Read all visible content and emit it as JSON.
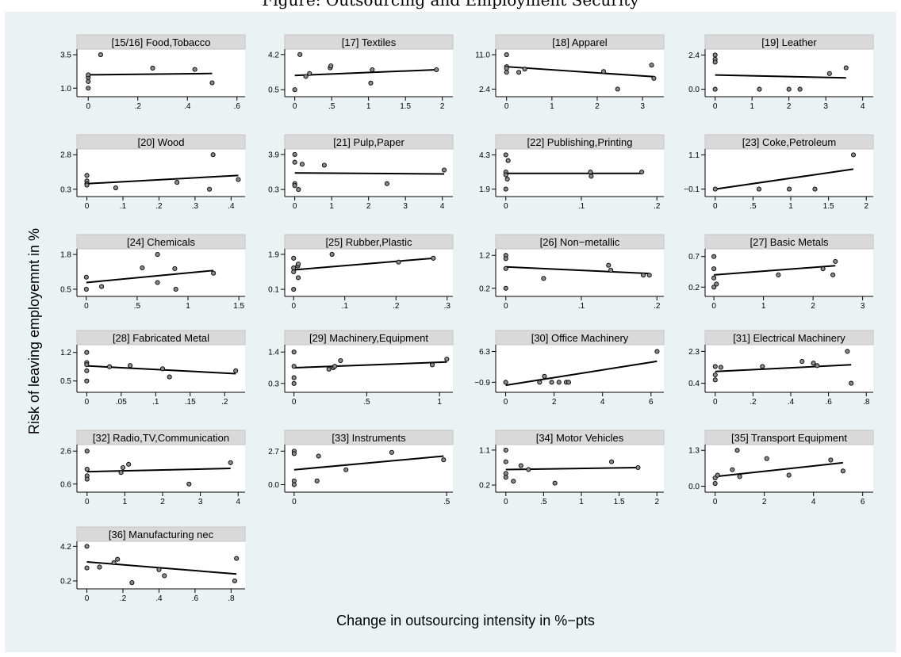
{
  "caption": "Figure: Outsourcing and Employment Security",
  "chart_data": {
    "type": "scatter",
    "xlabel": "Change in outsourcing intensity in %−pts",
    "ylabel": "Risk of leaving employemnt in %",
    "fit": "linear",
    "panels": [
      {
        "title": "[15/16] Food,Tobacco",
        "xlim": [
          -0.02,
          0.62
        ],
        "xticks": [
          0,
          0.2,
          0.4,
          0.6
        ],
        "xticklabels": [
          "0",
          ".2",
          ".4",
          ".6"
        ],
        "ylim": [
          0.6,
          3.8
        ],
        "yticks": [
          1.0,
          3.5
        ],
        "yticklabels": [
          "1.0",
          "3.5"
        ],
        "x": [
          0,
          0,
          0,
          0,
          0.05,
          0.26,
          0.43,
          0.5
        ],
        "y": [
          1.0,
          1.5,
          1.8,
          2.0,
          3.5,
          2.5,
          2.4,
          1.4
        ],
        "fit_line": [
          2.0,
          2.1
        ]
      },
      {
        "title": "[17] Textiles",
        "xlim": [
          -0.05,
          2.1
        ],
        "xticks": [
          0,
          0.5,
          1,
          1.5,
          2
        ],
        "xticklabels": [
          "0",
          ".5",
          "1",
          "1.5",
          "2"
        ],
        "ylim": [
          0.1,
          4.6
        ],
        "yticks": [
          0.5,
          4.2
        ],
        "yticklabels": [
          "0.5",
          "4.2"
        ],
        "x": [
          0,
          0.07,
          0.15,
          0.2,
          0.48,
          0.49,
          1.03,
          1.05,
          1.92
        ],
        "y": [
          0.5,
          4.2,
          1.9,
          2.2,
          2.8,
          3.0,
          1.2,
          2.6,
          2.6
        ],
        "fit_line": [
          2.0,
          2.6
        ]
      },
      {
        "title": "[18] Apparel",
        "xlim": [
          -0.1,
          3.4
        ],
        "xticks": [
          0,
          1,
          2,
          3
        ],
        "xticklabels": [
          "0",
          "1",
          "2",
          "3"
        ],
        "ylim": [
          1.3,
          12.0
        ],
        "yticks": [
          2.4,
          11.0
        ],
        "yticklabels": [
          "2.4",
          "11.0"
        ],
        "x": [
          0,
          0,
          0,
          0,
          0.27,
          0.4,
          2.14,
          2.45,
          3.2,
          3.25
        ],
        "y": [
          11.0,
          8.0,
          7.6,
          6.6,
          6.6,
          7.4,
          6.8,
          2.4,
          8.4,
          5.1
        ],
        "fit_line": [
          8.0,
          5.5
        ]
      },
      {
        "title": "[19] Leather",
        "xlim": [
          -0.1,
          4.2
        ],
        "xticks": [
          0,
          1,
          2,
          3,
          4
        ],
        "xticklabels": [
          "0",
          "1",
          "2",
          "3",
          "4"
        ],
        "ylim": [
          -0.3,
          2.7
        ],
        "yticks": [
          0.0,
          2.4
        ],
        "yticklabels": [
          "0.0",
          "2.4"
        ],
        "x": [
          0,
          0,
          0,
          0,
          1.2,
          2.0,
          2.3,
          3.1,
          3.55
        ],
        "y": [
          2.4,
          2.1,
          1.9,
          0,
          0,
          0,
          0,
          1.1,
          1.5
        ],
        "fit_line": [
          1.0,
          0.8
        ]
      },
      {
        "title": "[20] Wood",
        "xlim": [
          -0.01,
          0.43
        ],
        "xticks": [
          0,
          0.1,
          0.2,
          0.3,
          0.4
        ],
        "xticklabels": [
          "0",
          ".1",
          ".2",
          ".3",
          ".4"
        ],
        "ylim": [
          0.0,
          3.1
        ],
        "yticks": [
          0.3,
          2.8
        ],
        "yticklabels": [
          "0.3",
          "2.8"
        ],
        "x": [
          0,
          0,
          0,
          0,
          0.08,
          0.25,
          0.34,
          0.35,
          0.42
        ],
        "y": [
          1.3,
          0.9,
          0.7,
          0.6,
          0.4,
          0.8,
          0.3,
          2.8,
          1.0
        ],
        "fit_line": [
          0.7,
          1.3
        ]
      },
      {
        "title": "[21] Pulp,Paper",
        "xlim": [
          -0.1,
          4.2
        ],
        "xticks": [
          0,
          1,
          2,
          3,
          4
        ],
        "xticklabels": [
          "0",
          "1",
          "2",
          "3",
          "4"
        ],
        "ylim": [
          -0.1,
          4.3
        ],
        "yticks": [
          0.3,
          3.9
        ],
        "yticklabels": [
          "0.3",
          "3.9"
        ],
        "x": [
          0,
          0,
          0,
          0,
          0.1,
          0.2,
          0.8,
          2.5,
          4.05
        ],
        "y": [
          3.9,
          3.1,
          0.9,
          0.7,
          0.3,
          2.9,
          2.8,
          0.9,
          2.3
        ],
        "fit_line": [
          2.0,
          1.9
        ]
      },
      {
        "title": "[22] Publishing,Printing",
        "xlim": [
          -0.005,
          0.205
        ],
        "xticks": [
          0,
          0.1,
          0.2
        ],
        "xticklabels": [
          "0",
          ".1",
          ".2"
        ],
        "ylim": [
          1.6,
          4.6
        ],
        "yticks": [
          1.9,
          4.3
        ],
        "yticklabels": [
          "1.9",
          "4.3"
        ],
        "x": [
          0,
          0,
          0,
          0,
          0.002,
          0.003,
          0.112,
          0.113,
          0.18
        ],
        "y": [
          4.3,
          3.1,
          2.9,
          1.9,
          2.6,
          3.9,
          3.1,
          2.8,
          3.1
        ],
        "fit_line": [
          3.0,
          3.0
        ]
      },
      {
        "title": "[23] Coke,Petroleum",
        "xlim": [
          -0.05,
          2.05
        ],
        "xticks": [
          0,
          0.5,
          1,
          1.5,
          2
        ],
        "xticklabels": [
          "0",
          ".5",
          "1",
          "1.5",
          "2"
        ],
        "ylim": [
          -0.25,
          1.25
        ],
        "yticks": [
          -0.1,
          1.1
        ],
        "yticklabels": [
          "−0.1",
          "1.1"
        ],
        "x": [
          0,
          0.58,
          0.98,
          1.32,
          1.83
        ],
        "y": [
          -0.1,
          -0.1,
          -0.1,
          -0.1,
          1.1
        ],
        "fit_line": [
          -0.1,
          0.6
        ]
      },
      {
        "title": "[24] Chemicals",
        "xlim": [
          -0.03,
          1.53
        ],
        "xticks": [
          0,
          0.5,
          1,
          1.5
        ],
        "xticklabels": [
          "0",
          ".5",
          "1",
          "1.5"
        ],
        "ylim": [
          0.35,
          1.95
        ],
        "yticks": [
          0.5,
          1.8
        ],
        "yticklabels": [
          "0.5",
          "1.8"
        ],
        "x": [
          0,
          0,
          0.15,
          0.55,
          0.7,
          0.7,
          0.87,
          0.88,
          1.25
        ],
        "y": [
          0.5,
          0.95,
          0.6,
          1.3,
          0.75,
          1.8,
          1.27,
          0.5,
          1.1
        ],
        "fit_line": [
          0.75,
          1.2
        ]
      },
      {
        "title": "[25] Rubber,Plastic",
        "xlim": [
          -0.005,
          0.305
        ],
        "xticks": [
          0,
          0.1,
          0.2,
          0.3
        ],
        "xticklabels": [
          "0",
          ".1",
          ".2",
          ".3"
        ],
        "ylim": [
          -0.1,
          2.1
        ],
        "yticks": [
          0.1,
          1.9
        ],
        "yticklabels": [
          "0.1",
          "1.9"
        ],
        "x": [
          0,
          0,
          0,
          0,
          0.008,
          0.009,
          0.009,
          0.075,
          0.205,
          0.273
        ],
        "y": [
          1.7,
          1.2,
          1.0,
          0.1,
          1.3,
          1.4,
          0.7,
          1.9,
          1.5,
          1.7
        ],
        "fit_line": [
          1.1,
          1.7
        ]
      },
      {
        "title": "[26] Non−metallic",
        "xlim": [
          -0.005,
          0.205
        ],
        "xticks": [
          0,
          0.1,
          0.2
        ],
        "xticklabels": [
          "0",
          ".1",
          ".2"
        ],
        "ylim": [
          0.05,
          1.35
        ],
        "yticks": [
          0.2,
          1.2
        ],
        "yticklabels": [
          "0.2",
          "1.2"
        ],
        "x": [
          0,
          0,
          0,
          0,
          0.05,
          0.136,
          0.139,
          0.182,
          0.19
        ],
        "y": [
          1.2,
          1.1,
          0.8,
          0.2,
          0.5,
          0.9,
          0.75,
          0.6,
          0.6
        ],
        "fit_line": [
          0.85,
          0.65
        ]
      },
      {
        "title": "[27] Basic Metals",
        "xlim": [
          -0.05,
          3.15
        ],
        "xticks": [
          0,
          1,
          2,
          3
        ],
        "xticklabels": [
          "0",
          "1",
          "2",
          "3"
        ],
        "ylim": [
          0.1,
          0.8
        ],
        "yticks": [
          0.2,
          0.7
        ],
        "yticklabels": [
          "0.2",
          "0.7"
        ],
        "x": [
          0,
          0,
          0,
          0,
          0.05,
          1.3,
          2.2,
          2.4,
          2.45
        ],
        "y": [
          0.7,
          0.5,
          0.35,
          0.2,
          0.25,
          0.4,
          0.5,
          0.4,
          0.62
        ],
        "fit_line": [
          0.4,
          0.55
        ]
      },
      {
        "title": "[28] Fabricated Metal",
        "xlim": [
          -0.005,
          0.225
        ],
        "xticks": [
          0,
          0.05,
          0.1,
          0.15,
          0.2
        ],
        "xticklabels": [
          "0",
          ".05",
          ".1",
          ".15",
          ".2"
        ],
        "ylim": [
          0.3,
          1.35
        ],
        "yticks": [
          0.5,
          1.2
        ],
        "yticklabels": [
          "0.5",
          "1.2"
        ],
        "x": [
          0,
          0,
          0,
          0,
          0,
          0.033,
          0.063,
          0.11,
          0.12,
          0.216
        ],
        "y": [
          1.2,
          0.95,
          0.9,
          0.75,
          0.5,
          0.85,
          0.88,
          0.8,
          0.6,
          0.75
        ],
        "fit_line": [
          0.87,
          0.68
        ]
      },
      {
        "title": "[29] Machinery,Equipment",
        "xlim": [
          -0.02,
          1.07
        ],
        "xticks": [
          0,
          0.5,
          1
        ],
        "xticklabels": [
          "0",
          ".5",
          "1"
        ],
        "ylim": [
          0.1,
          1.6
        ],
        "yticks": [
          0.3,
          1.4
        ],
        "yticklabels": [
          "0.3",
          "1.4"
        ],
        "x": [
          0,
          0,
          0,
          0,
          0.24,
          0.27,
          0.28,
          0.32,
          0.95,
          1.05
        ],
        "y": [
          1.4,
          0.9,
          0.5,
          0.3,
          0.8,
          0.85,
          0.9,
          1.1,
          0.95,
          1.15
        ],
        "fit_line": [
          0.85,
          1.05
        ]
      },
      {
        "title": "[30] Office Machinery",
        "xlim": [
          -0.15,
          6.4
        ],
        "xticks": [
          0,
          2,
          4,
          6
        ],
        "xticklabels": [
          "0",
          "2",
          "4",
          "6"
        ],
        "ylim": [
          -2.5,
          7.5
        ],
        "yticks": [
          -0.9,
          6.3
        ],
        "yticklabels": [
          "−0.9",
          "6.3"
        ],
        "x": [
          0,
          1.4,
          1.6,
          1.9,
          2.2,
          2.5,
          2.6,
          6.25
        ],
        "y": [
          -0.9,
          -0.9,
          0.5,
          -0.9,
          -0.9,
          -0.9,
          -0.9,
          6.3
        ],
        "fit_line": [
          -1.6,
          4.0
        ]
      },
      {
        "title": "[31] Electrical Machinery",
        "xlim": [
          -0.02,
          0.82
        ],
        "xticks": [
          0,
          0.2,
          0.4,
          0.6,
          0.8
        ],
        "xticklabels": [
          "0",
          ".2",
          ".4",
          ".6",
          ".8"
        ],
        "ylim": [
          0.05,
          2.6
        ],
        "yticks": [
          0.4,
          2.3
        ],
        "yticklabels": [
          "0.4",
          "2.3"
        ],
        "x": [
          0,
          0,
          0,
          0.03,
          0.25,
          0.46,
          0.52,
          0.54,
          0.7,
          0.72
        ],
        "y": [
          1.4,
          0.9,
          0.6,
          1.35,
          1.4,
          1.7,
          1.6,
          1.45,
          2.3,
          0.4
        ],
        "fit_line": [
          1.1,
          1.5
        ]
      },
      {
        "title": "[32] Radio,TV,Communication",
        "xlim": [
          -0.1,
          4.1
        ],
        "xticks": [
          0,
          1,
          2,
          3,
          4
        ],
        "xticklabels": [
          "0",
          "1",
          "2",
          "3",
          "4"
        ],
        "ylim": [
          0.3,
          2.9
        ],
        "yticks": [
          0.6,
          2.6
        ],
        "yticklabels": [
          "0.6",
          "2.6"
        ],
        "x": [
          0,
          0,
          0,
          0,
          0.9,
          0.95,
          1.1,
          2.7,
          3.8
        ],
        "y": [
          2.6,
          1.5,
          1.1,
          0.9,
          1.3,
          1.6,
          1.8,
          0.6,
          1.9
        ],
        "fit_line": [
          1.35,
          1.55
        ]
      },
      {
        "title": "[33] Instruments",
        "xlim": [
          -0.01,
          0.51
        ],
        "xticks": [
          0,
          0.5
        ],
        "xticklabels": [
          "0",
          ".5"
        ],
        "ylim": [
          -0.35,
          3.1
        ],
        "yticks": [
          0.0,
          2.7
        ],
        "yticklabels": [
          "0.0",
          "2.7"
        ],
        "x": [
          0,
          0,
          0,
          0,
          0.075,
          0.08,
          0.17,
          0.32,
          0.49
        ],
        "y": [
          2.7,
          2.5,
          0.3,
          0.0,
          0.3,
          2.3,
          1.2,
          2.6,
          2.0
        ],
        "fit_line": [
          1.2,
          2.3
        ]
      },
      {
        "title": "[34] Motor Vehicles",
        "xlim": [
          -0.05,
          2.05
        ],
        "xticks": [
          0,
          0.5,
          1,
          1.5,
          2
        ],
        "xticklabels": [
          "0",
          ".5",
          "1",
          "1.5",
          "2"
        ],
        "ylim": [
          0.1,
          1.2
        ],
        "yticks": [
          0.2,
          1.1
        ],
        "yticklabels": [
          "0.2",
          "1.1"
        ],
        "x": [
          0,
          0,
          0,
          0,
          0.1,
          0.2,
          0.3,
          0.65,
          1.4,
          1.75
        ],
        "y": [
          1.1,
          0.8,
          0.5,
          0.4,
          0.3,
          0.7,
          0.6,
          0.25,
          0.8,
          0.65
        ],
        "fit_line": [
          0.6,
          0.65
        ]
      },
      {
        "title": "[35] Transport Equipment",
        "xlim": [
          -0.15,
          6.3
        ],
        "xticks": [
          0,
          2,
          4,
          6
        ],
        "xticklabels": [
          "0",
          "2",
          "4",
          "6"
        ],
        "ylim": [
          -0.1,
          1.45
        ],
        "yticks": [
          0.0,
          1.3
        ],
        "yticklabels": [
          "0.0",
          "1.3"
        ],
        "x": [
          0,
          0,
          0.1,
          0.7,
          0.9,
          1.0,
          2.1,
          3.0,
          4.7,
          5.2
        ],
        "y": [
          0.3,
          0.1,
          0.4,
          0.6,
          1.3,
          0.35,
          1.0,
          0.4,
          0.95,
          0.55
        ],
        "fit_line": [
          0.35,
          0.85
        ]
      },
      {
        "title": "[36] Manufacturing nec",
        "xlim": [
          -0.02,
          0.86
        ],
        "xticks": [
          0,
          0.2,
          0.4,
          0.6,
          0.8
        ],
        "xticklabels": [
          "0",
          ".2",
          ".4",
          ".6",
          ".8"
        ],
        "ylim": [
          -0.35,
          4.6
        ],
        "yticks": [
          0.2,
          4.2
        ],
        "yticklabels": [
          "0.2",
          "4.2"
        ],
        "x": [
          0,
          0,
          0.07,
          0.15,
          0.17,
          0.25,
          0.4,
          0.43,
          0.82,
          0.83
        ],
        "y": [
          4.2,
          1.7,
          1.8,
          2.3,
          2.7,
          0.0,
          1.5,
          0.8,
          0.2,
          2.8
        ],
        "fit_line": [
          2.4,
          1.0
        ]
      }
    ]
  }
}
